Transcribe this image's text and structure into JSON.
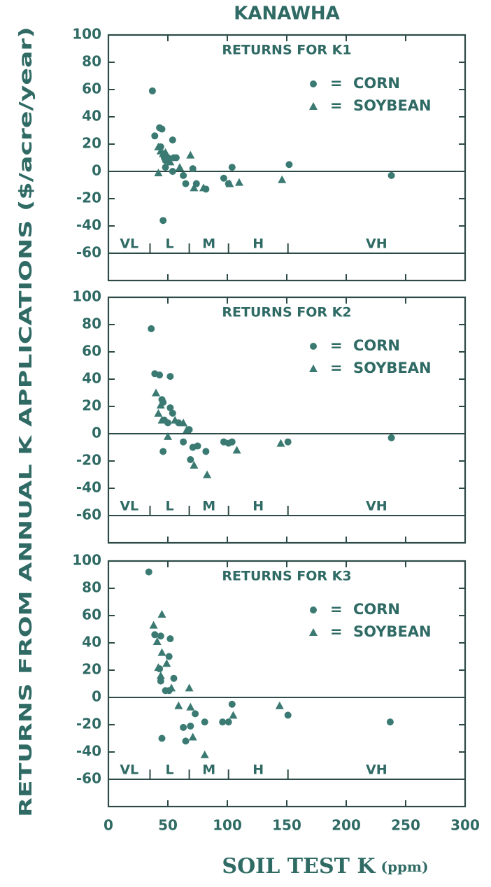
{
  "title": "KANAWHA",
  "ylabel": "RETURNS FROM ANNUAL K APPLICATIONS ($/acre/year)",
  "xlabel": "SOIL TEST K",
  "xlabel_unit": "(ppm)",
  "legend_sep": "=",
  "soil_classes": [
    {
      "label": "VL",
      "max": 35
    },
    {
      "label": "L",
      "max": 68
    },
    {
      "label": "M",
      "max": 101
    },
    {
      "label": "H",
      "max": 151
    },
    {
      "label": "VH"
    }
  ],
  "chart_data": [
    {
      "type": "scatter",
      "title": "RETURNS FOR K1",
      "xlim": [
        0,
        300
      ],
      "xticks": [
        0,
        50,
        100,
        150,
        200,
        250,
        300
      ],
      "xtick_labels": false,
      "ylim": [
        -80,
        100
      ],
      "yticks": [
        -60,
        -40,
        -20,
        0,
        20,
        40,
        60,
        80,
        100
      ],
      "hlines": [
        0,
        -60
      ],
      "series": [
        {
          "name": "CORN",
          "marker": "circle",
          "color": "#3b7a72",
          "x": [
            37,
            39,
            43,
            45,
            54,
            44,
            47,
            50,
            55,
            57,
            48,
            46,
            48,
            54,
            63,
            65,
            71,
            74,
            82,
            97,
            104,
            101,
            152,
            238
          ],
          "values": [
            59,
            26,
            32,
            31,
            23,
            18,
            10,
            10,
            10,
            10,
            8,
            -36,
            3,
            0,
            -3,
            -9,
            2,
            -9,
            -13,
            -5,
            3,
            -9,
            5,
            -3
          ]
        },
        {
          "name": "SOYBEAN",
          "marker": "triangle",
          "color": "#3b7a72",
          "x": [
            42,
            44,
            46,
            48,
            42,
            52,
            69,
            72,
            80,
            110,
            102,
            146,
            60
          ],
          "values": [
            18,
            15,
            13,
            14,
            -1,
            7,
            12,
            -12,
            -12,
            -8,
            -9,
            -6,
            3
          ]
        }
      ]
    },
    {
      "type": "scatter",
      "title": "RETURNS FOR K2",
      "xlim": [
        0,
        300
      ],
      "xticks": [
        0,
        50,
        100,
        150,
        200,
        250,
        300
      ],
      "xtick_labels": false,
      "ylim": [
        -80,
        100
      ],
      "yticks": [
        -60,
        -40,
        -20,
        0,
        20,
        40,
        60,
        80,
        100
      ],
      "hlines": [
        0,
        -60
      ],
      "series": [
        {
          "name": "CORN",
          "marker": "circle",
          "color": "#3b7a72",
          "x": [
            36,
            39,
            43,
            52,
            45,
            46,
            52,
            54,
            47,
            50,
            46,
            63,
            68,
            71,
            75,
            69,
            82,
            97,
            101,
            104,
            151,
            238,
            59
          ],
          "values": [
            77,
            44,
            43,
            42,
            25,
            23,
            19,
            15,
            10,
            8,
            -13,
            -6,
            3,
            -10,
            -9,
            -19,
            -13,
            -6,
            -7,
            -6,
            -6,
            -3,
            8
          ]
        },
        {
          "name": "SOYBEAN",
          "marker": "triangle",
          "color": "#3b7a72",
          "x": [
            40,
            44,
            45,
            50,
            56,
            63,
            72,
            83,
            108,
            145,
            66,
            42
          ],
          "values": [
            30,
            21,
            10,
            -2,
            10,
            8,
            -23,
            -30,
            -12,
            -7,
            3,
            15
          ]
        }
      ]
    },
    {
      "type": "scatter",
      "title": "RETURNS FOR K3",
      "xlim": [
        0,
        300
      ],
      "xticks": [
        0,
        50,
        100,
        150,
        200,
        250,
        300
      ],
      "xtick_labels": true,
      "ylim": [
        -80,
        100
      ],
      "yticks": [
        -60,
        -40,
        -20,
        0,
        20,
        40,
        60,
        80,
        100
      ],
      "hlines": [
        0,
        -60
      ],
      "series": [
        {
          "name": "CORN",
          "marker": "circle",
          "color": "#3b7a72",
          "x": [
            34,
            39,
            44,
            52,
            51,
            43,
            55,
            44,
            48,
            51,
            45,
            63,
            65,
            69,
            73,
            81,
            96,
            101,
            104,
            151,
            237
          ],
          "values": [
            92,
            46,
            45,
            43,
            30,
            21,
            14,
            12,
            5,
            5,
            -30,
            -22,
            -32,
            -21,
            -12,
            -18,
            -18,
            -18,
            -5,
            -13,
            -18
          ]
        },
        {
          "name": "SOYBEAN",
          "marker": "triangle",
          "color": "#3b7a72",
          "x": [
            38,
            45,
            41,
            45,
            42,
            49,
            44,
            53,
            59,
            68,
            69,
            71,
            81,
            105,
            144
          ],
          "values": [
            53,
            61,
            41,
            33,
            22,
            25,
            16,
            7,
            -6,
            7,
            -7,
            -29,
            -42,
            -13,
            -6
          ]
        }
      ]
    }
  ]
}
